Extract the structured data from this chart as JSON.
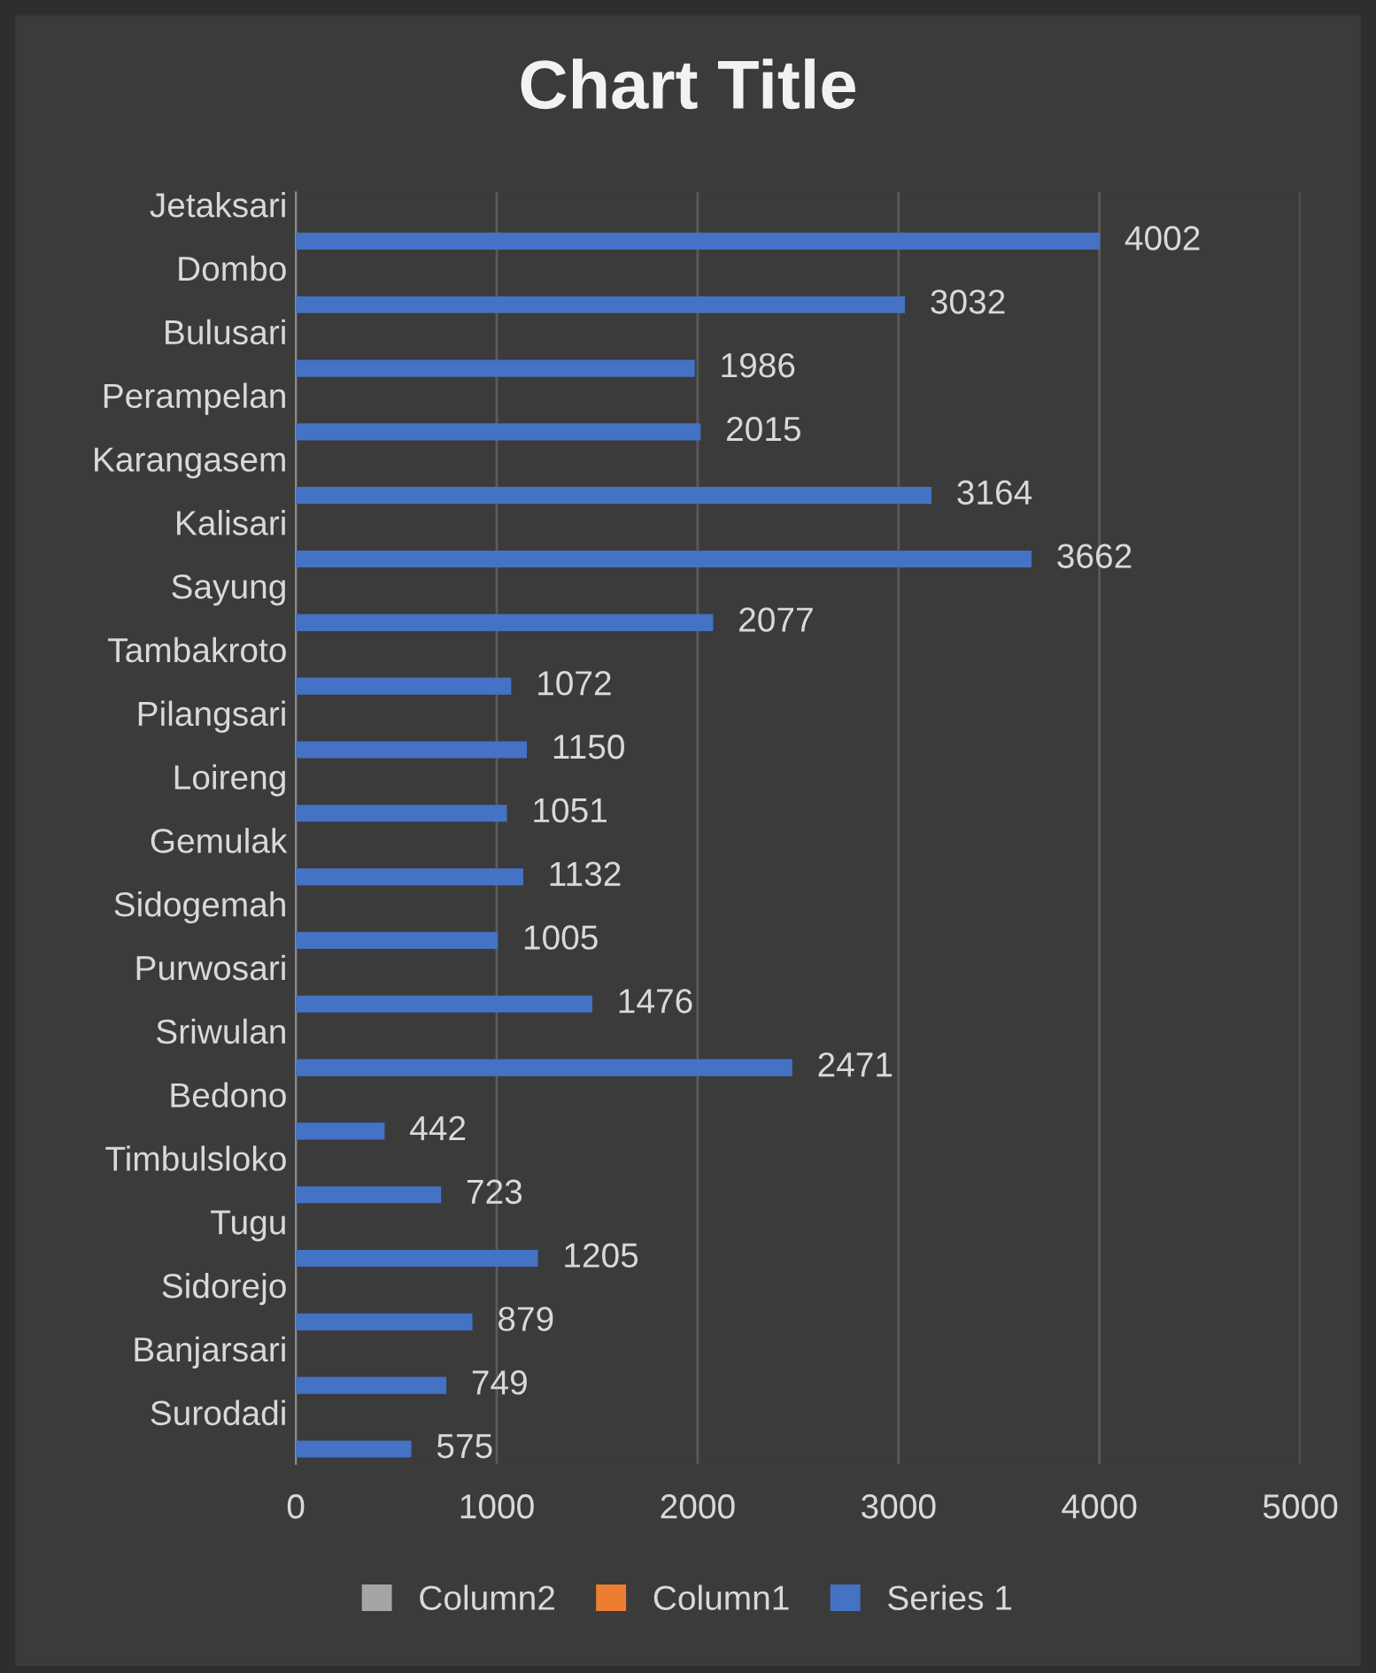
{
  "chart_data": {
    "type": "bar",
    "orientation": "horizontal",
    "title": "Chart Title",
    "categories": [
      "Jetaksari",
      "Dombo",
      "Bulusari",
      "Perampelan",
      "Karangasem",
      "Kalisari",
      "Sayung",
      "Tambakroto",
      "Pilangsari",
      "Loireng",
      "Gemulak",
      "Sidogemah",
      "Purwosari",
      "Sriwulan",
      "Bedono",
      "Timbulsloko",
      "Tugu",
      "Sidorejo",
      "Banjarsari",
      "Surodadi"
    ],
    "series": [
      {
        "name": "Column2",
        "color": "#a5a5a5",
        "values": [
          null,
          null,
          null,
          null,
          null,
          null,
          null,
          null,
          null,
          null,
          null,
          null,
          null,
          null,
          null,
          null,
          null,
          null,
          null,
          null
        ]
      },
      {
        "name": "Column1",
        "color": "#ed7d31",
        "values": [
          null,
          null,
          null,
          null,
          null,
          null,
          null,
          null,
          null,
          null,
          null,
          null,
          null,
          null,
          null,
          null,
          null,
          null,
          null,
          null
        ]
      },
      {
        "name": "Series 1",
        "color": "#4472c4",
        "values": [
          4002,
          3032,
          1986,
          2015,
          3164,
          3662,
          2077,
          1072,
          1150,
          1051,
          1132,
          1005,
          1476,
          2471,
          442,
          723,
          1205,
          879,
          749,
          575
        ]
      }
    ],
    "xlim": [
      0,
      5000
    ],
    "xticks": [
      0,
      1000,
      2000,
      3000,
      4000,
      5000
    ],
    "grid": "x",
    "data_labels": true,
    "legend": "bottom"
  }
}
